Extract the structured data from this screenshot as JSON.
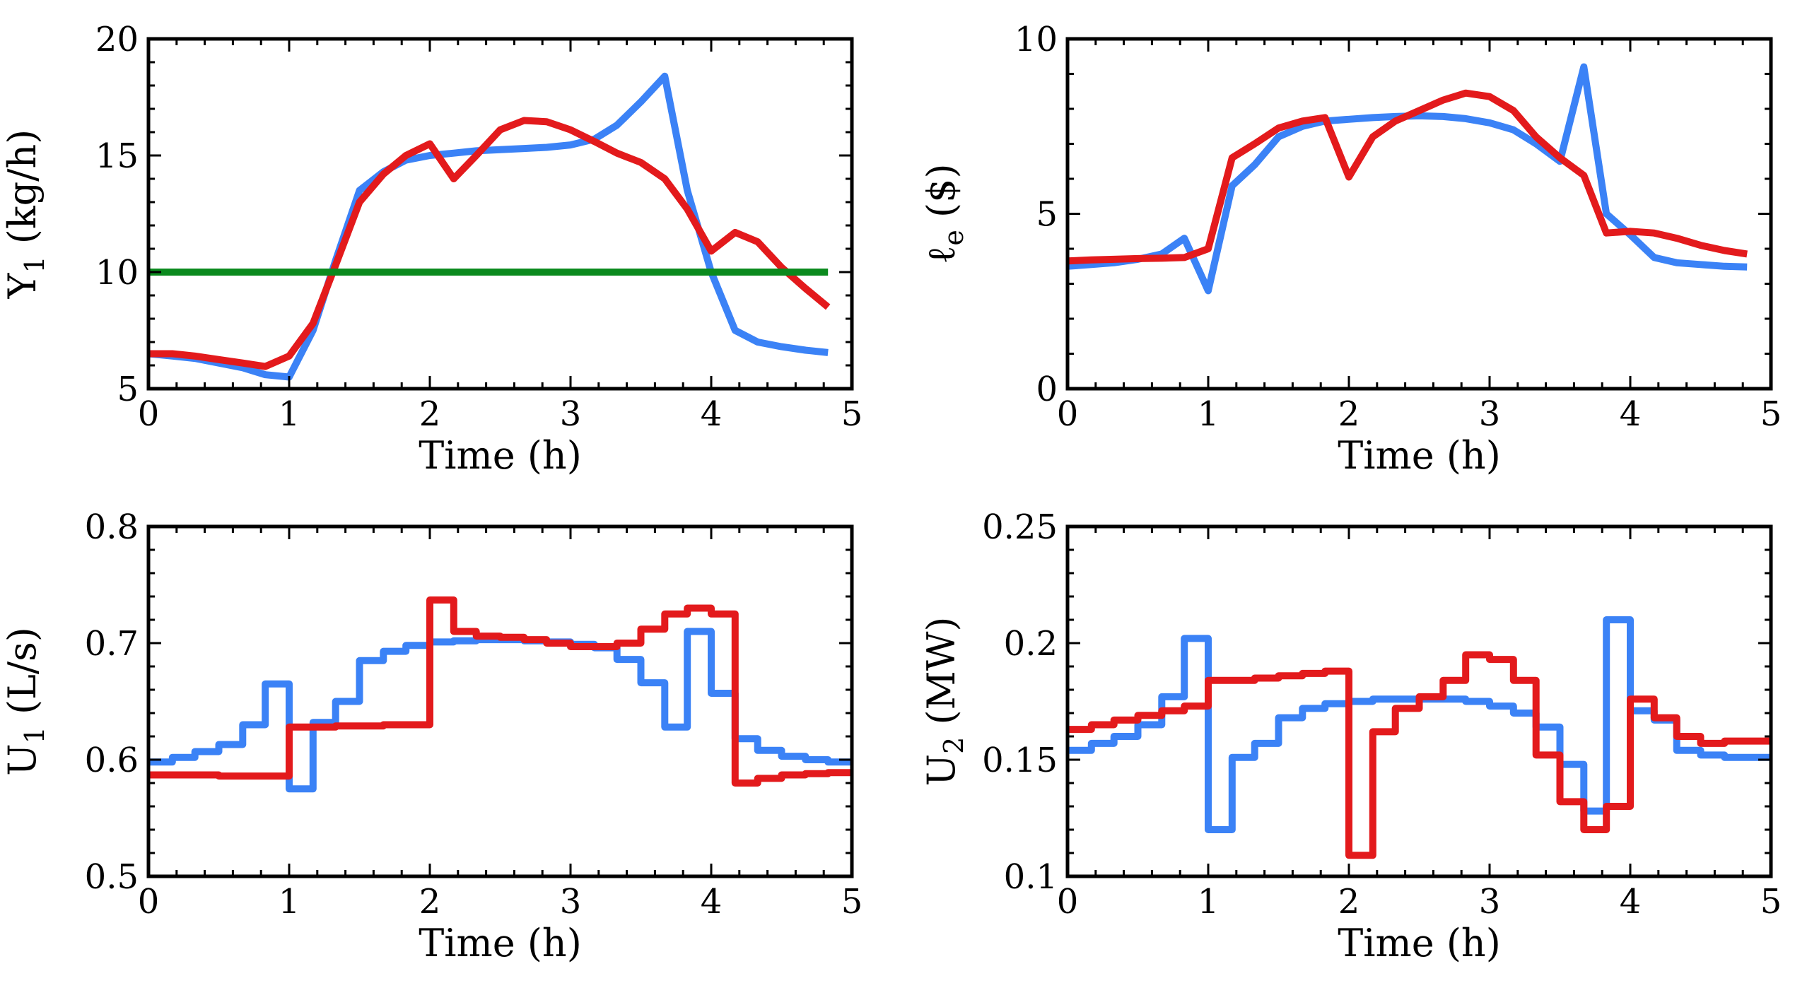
{
  "colors": {
    "blue": "#3b82f6",
    "red": "#e31a1c",
    "green": "#0b8a1e"
  },
  "chart_data": [
    {
      "type": "line",
      "xlabel": "Time (h)",
      "ylabel_main": "Y",
      "ylabel_sub": "1",
      "ylabel_rest": " (kg/h)",
      "xlim": [
        0,
        5
      ],
      "ylim": [
        5,
        20
      ],
      "xticks": [
        "0",
        "1",
        "2",
        "3",
        "4",
        "5"
      ],
      "yticks": [
        "5",
        "10",
        "15",
        "20"
      ],
      "series": [
        {
          "name": "blue",
          "color": "#3b82f6",
          "step": false,
          "x": [
            0,
            0.17,
            0.33,
            0.5,
            0.67,
            0.83,
            1.0,
            1.17,
            1.33,
            1.5,
            1.67,
            1.83,
            2.0,
            2.17,
            2.33,
            2.5,
            2.67,
            2.83,
            3.0,
            3.17,
            3.33,
            3.5,
            3.67,
            3.83,
            4.0,
            4.17,
            4.33,
            4.5,
            4.67,
            4.83
          ],
          "y": [
            6.5,
            6.4,
            6.3,
            6.1,
            5.9,
            5.6,
            5.5,
            7.5,
            10.5,
            13.5,
            14.3,
            14.8,
            15.0,
            15.1,
            15.2,
            15.25,
            15.3,
            15.35,
            15.45,
            15.7,
            16.3,
            17.3,
            18.4,
            13.5,
            10.0,
            7.5,
            7.0,
            6.8,
            6.65,
            6.55
          ]
        },
        {
          "name": "red",
          "color": "#e31a1c",
          "step": false,
          "x": [
            0,
            0.17,
            0.33,
            0.5,
            0.67,
            0.83,
            1.0,
            1.17,
            1.33,
            1.5,
            1.67,
            1.83,
            2.0,
            2.17,
            2.33,
            2.5,
            2.67,
            2.83,
            3.0,
            3.17,
            3.33,
            3.5,
            3.67,
            3.83,
            4.0,
            4.17,
            4.33,
            4.5,
            4.67,
            4.83
          ],
          "y": [
            6.5,
            6.5,
            6.4,
            6.25,
            6.1,
            5.95,
            6.4,
            7.8,
            10.3,
            13.0,
            14.2,
            15.0,
            15.5,
            14.0,
            15.0,
            16.1,
            16.5,
            16.45,
            16.1,
            15.6,
            15.1,
            14.7,
            14.0,
            12.7,
            10.9,
            11.7,
            11.3,
            10.2,
            9.3,
            8.5
          ]
        },
        {
          "name": "green",
          "color": "#0b8a1e",
          "step": false,
          "x": [
            0,
            4.83
          ],
          "y": [
            10,
            10
          ]
        }
      ]
    },
    {
      "type": "line",
      "xlabel": "Time (h)",
      "ylabel_main": "ℓ",
      "ylabel_sub": "e",
      "ylabel_rest": " ($)",
      "xlim": [
        0,
        5
      ],
      "ylim": [
        0,
        10
      ],
      "xticks": [
        "0",
        "1",
        "2",
        "3",
        "4",
        "5"
      ],
      "yticks": [
        "0",
        "5",
        "10"
      ],
      "series": [
        {
          "name": "blue",
          "color": "#3b82f6",
          "step": false,
          "x": [
            0,
            0.17,
            0.33,
            0.5,
            0.67,
            0.83,
            1.0,
            1.17,
            1.33,
            1.5,
            1.67,
            1.83,
            2.0,
            2.17,
            2.33,
            2.5,
            2.67,
            2.83,
            3.0,
            3.17,
            3.33,
            3.5,
            3.67,
            3.83,
            4.0,
            4.17,
            4.33,
            4.5,
            4.67,
            4.83
          ],
          "y": [
            3.5,
            3.55,
            3.6,
            3.7,
            3.85,
            4.3,
            2.8,
            5.8,
            6.4,
            7.2,
            7.5,
            7.65,
            7.7,
            7.75,
            7.78,
            7.8,
            7.78,
            7.72,
            7.6,
            7.4,
            7.0,
            6.5,
            9.2,
            5.0,
            4.4,
            3.75,
            3.6,
            3.55,
            3.5,
            3.48
          ]
        },
        {
          "name": "red",
          "color": "#e31a1c",
          "step": false,
          "x": [
            0,
            0.17,
            0.33,
            0.5,
            0.67,
            0.83,
            1.0,
            1.17,
            1.33,
            1.5,
            1.67,
            1.83,
            2.0,
            2.17,
            2.33,
            2.5,
            2.67,
            2.83,
            3.0,
            3.17,
            3.33,
            3.5,
            3.67,
            3.83,
            4.0,
            4.17,
            4.33,
            4.5,
            4.67,
            4.83
          ],
          "y": [
            3.65,
            3.68,
            3.7,
            3.72,
            3.73,
            3.75,
            4.0,
            6.6,
            7.0,
            7.45,
            7.65,
            7.75,
            6.05,
            7.2,
            7.65,
            7.95,
            8.25,
            8.45,
            8.35,
            7.95,
            7.2,
            6.6,
            6.1,
            4.45,
            4.5,
            4.45,
            4.3,
            4.1,
            3.95,
            3.85
          ]
        }
      ]
    },
    {
      "type": "line",
      "xlabel": "Time (h)",
      "ylabel_main": "U",
      "ylabel_sub": "1",
      "ylabel_rest": " (L/s)",
      "xlim": [
        0,
        5
      ],
      "ylim": [
        0.5,
        0.8
      ],
      "xticks": [
        "0",
        "1",
        "2",
        "3",
        "4",
        "5"
      ],
      "yticks": [
        "0.5",
        "0.6",
        "0.7",
        "0.8"
      ],
      "series": [
        {
          "name": "blue",
          "color": "#3b82f6",
          "step": true,
          "x": [
            0,
            0.17,
            0.33,
            0.5,
            0.67,
            0.83,
            1.0,
            1.17,
            1.33,
            1.5,
            1.67,
            1.83,
            2.0,
            2.17,
            2.33,
            2.5,
            2.67,
            2.83,
            3.0,
            3.17,
            3.33,
            3.5,
            3.67,
            3.83,
            4.0,
            4.17,
            4.33,
            4.5,
            4.67,
            4.83
          ],
          "y": [
            0.598,
            0.602,
            0.607,
            0.613,
            0.63,
            0.665,
            0.575,
            0.632,
            0.65,
            0.685,
            0.693,
            0.698,
            0.701,
            0.702,
            0.703,
            0.703,
            0.702,
            0.701,
            0.699,
            0.696,
            0.686,
            0.666,
            0.628,
            0.71,
            0.657,
            0.618,
            0.608,
            0.603,
            0.6,
            0.598
          ]
        },
        {
          "name": "red",
          "color": "#e31a1c",
          "step": true,
          "x": [
            0,
            0.17,
            0.33,
            0.5,
            0.67,
            0.83,
            1.0,
            1.17,
            1.33,
            1.5,
            1.67,
            1.83,
            2.0,
            2.17,
            2.33,
            2.5,
            2.67,
            2.83,
            3.0,
            3.17,
            3.33,
            3.5,
            3.67,
            3.83,
            4.0,
            4.17,
            4.33,
            4.5,
            4.67,
            4.83
          ],
          "y": [
            0.587,
            0.587,
            0.587,
            0.586,
            0.586,
            0.586,
            0.628,
            0.628,
            0.629,
            0.629,
            0.63,
            0.63,
            0.737,
            0.71,
            0.706,
            0.705,
            0.703,
            0.7,
            0.697,
            0.697,
            0.7,
            0.712,
            0.725,
            0.73,
            0.725,
            0.58,
            0.584,
            0.587,
            0.588,
            0.589
          ]
        }
      ]
    },
    {
      "type": "line",
      "xlabel": "Time (h)",
      "ylabel_main": "U",
      "ylabel_sub": "2",
      "ylabel_rest": " (MW)",
      "xlim": [
        0,
        5
      ],
      "ylim": [
        0.1,
        0.25
      ],
      "xticks": [
        "0",
        "1",
        "2",
        "3",
        "4",
        "5"
      ],
      "yticks": [
        "0.1",
        "0.15",
        "0.2",
        "0.25"
      ],
      "series": [
        {
          "name": "blue",
          "color": "#3b82f6",
          "step": true,
          "x": [
            0,
            0.17,
            0.33,
            0.5,
            0.67,
            0.83,
            1.0,
            1.17,
            1.33,
            1.5,
            1.67,
            1.83,
            2.0,
            2.17,
            2.33,
            2.5,
            2.67,
            2.83,
            3.0,
            3.17,
            3.33,
            3.5,
            3.67,
            3.83,
            4.0,
            4.17,
            4.33,
            4.5,
            4.67,
            4.83
          ],
          "y": [
            0.154,
            0.157,
            0.16,
            0.165,
            0.177,
            0.202,
            0.12,
            0.151,
            0.157,
            0.168,
            0.172,
            0.174,
            0.175,
            0.176,
            0.176,
            0.176,
            0.176,
            0.175,
            0.173,
            0.17,
            0.164,
            0.148,
            0.128,
            0.21,
            0.171,
            0.167,
            0.154,
            0.152,
            0.151,
            0.151
          ]
        },
        {
          "name": "red",
          "color": "#e31a1c",
          "step": true,
          "x": [
            0,
            0.17,
            0.33,
            0.5,
            0.67,
            0.83,
            1.0,
            1.17,
            1.33,
            1.5,
            1.67,
            1.83,
            2.0,
            2.17,
            2.33,
            2.5,
            2.67,
            2.83,
            3.0,
            3.17,
            3.33,
            3.5,
            3.67,
            3.83,
            4.0,
            4.17,
            4.33,
            4.5,
            4.67,
            4.83
          ],
          "y": [
            0.163,
            0.165,
            0.167,
            0.169,
            0.171,
            0.173,
            0.184,
            0.184,
            0.185,
            0.186,
            0.187,
            0.188,
            0.109,
            0.162,
            0.172,
            0.177,
            0.184,
            0.195,
            0.193,
            0.184,
            0.152,
            0.132,
            0.12,
            0.13,
            0.176,
            0.168,
            0.16,
            0.157,
            0.158,
            0.158
          ]
        }
      ]
    }
  ]
}
